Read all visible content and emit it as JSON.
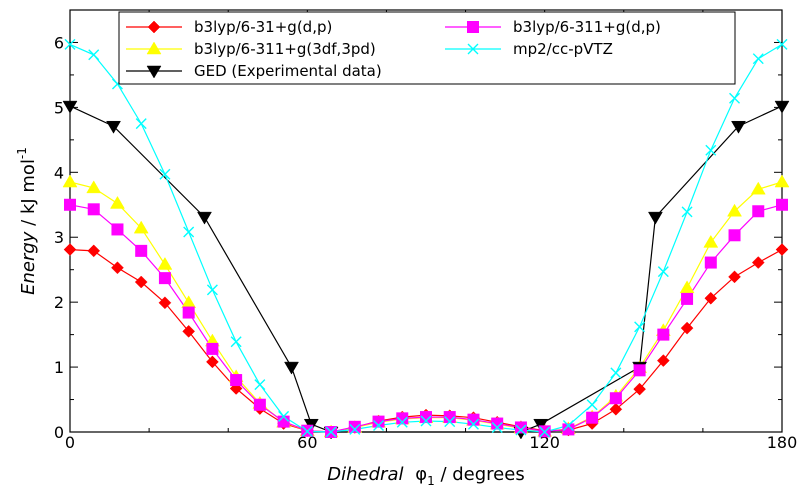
{
  "chart_data": {
    "type": "line",
    "title": "",
    "xlabel": {
      "prefix": "Dihedral",
      "symbol": "φ",
      "subscript": "1",
      "suffix": " / degrees"
    },
    "ylabel": {
      "prefix": "Energy",
      "suffix": " / kJ mol",
      "superscript": "-1"
    },
    "xlim": [
      0,
      180
    ],
    "ylim": [
      0,
      6.5
    ],
    "xticks": [
      0,
      60,
      120,
      180
    ],
    "yticks": [
      0,
      1,
      2,
      3,
      4,
      5,
      6
    ],
    "grid": false,
    "legend_position": "top",
    "series": [
      {
        "name": "b3lyp/6-31+g(d,p)",
        "color": "#ff0000",
        "marker": "diamond",
        "x": [
          0,
          6,
          12,
          18,
          24,
          30,
          36,
          42,
          48,
          54,
          60,
          66,
          72,
          78,
          84,
          90,
          96,
          102,
          108,
          114,
          120,
          126,
          132,
          138,
          144,
          150,
          156,
          162,
          168,
          174,
          180
        ],
        "y": [
          2.81,
          2.79,
          2.53,
          2.31,
          1.99,
          1.55,
          1.08,
          0.67,
          0.36,
          0.13,
          0.02,
          0.0,
          0.07,
          0.17,
          0.23,
          0.26,
          0.25,
          0.22,
          0.15,
          0.08,
          0.02,
          0.03,
          0.13,
          0.35,
          0.66,
          1.1,
          1.6,
          2.06,
          2.39,
          2.61,
          2.81
        ]
      },
      {
        "name": "b3lyp/6-311+g(3df,3pd)",
        "color": "#ffff00",
        "marker": "triangle-up",
        "x": [
          0,
          6,
          12,
          18,
          24,
          30,
          36,
          42,
          48,
          54,
          60,
          66,
          72,
          78,
          84,
          90,
          96,
          102,
          108,
          114,
          120,
          126,
          132,
          138,
          144,
          150,
          156,
          162,
          168,
          174,
          180
        ],
        "y": [
          3.85,
          3.76,
          3.52,
          3.14,
          2.58,
          1.99,
          1.4,
          0.85,
          0.44,
          0.15,
          0.02,
          0.0,
          0.07,
          0.15,
          0.2,
          0.22,
          0.22,
          0.18,
          0.12,
          0.06,
          0.01,
          0.05,
          0.23,
          0.55,
          0.99,
          1.56,
          2.22,
          2.92,
          3.4,
          3.74,
          3.85
        ]
      },
      {
        "name": "GED (Experimental data)",
        "color": "#000000",
        "marker": "triangle-down",
        "x": [
          0,
          11,
          34,
          56,
          61,
          66,
          114,
          119,
          144,
          148,
          169,
          180
        ],
        "y": [
          5.02,
          4.71,
          3.31,
          1.0,
          0.12,
          0.0,
          0.0,
          0.12,
          1.0,
          3.31,
          4.71,
          5.02
        ]
      },
      {
        "name": "b3lyp/6-311+g(d,p)",
        "color": "#ff00ff",
        "marker": "square",
        "x": [
          0,
          6,
          12,
          18,
          24,
          30,
          36,
          42,
          48,
          54,
          60,
          66,
          72,
          78,
          84,
          90,
          96,
          102,
          108,
          114,
          120,
          126,
          132,
          138,
          144,
          150,
          156,
          162,
          168,
          174,
          180
        ],
        "y": [
          3.5,
          3.43,
          3.12,
          2.79,
          2.37,
          1.84,
          1.28,
          0.8,
          0.42,
          0.16,
          0.02,
          0.0,
          0.08,
          0.16,
          0.21,
          0.23,
          0.23,
          0.19,
          0.13,
          0.07,
          0.01,
          0.04,
          0.22,
          0.52,
          0.95,
          1.5,
          2.05,
          2.61,
          3.03,
          3.4,
          3.5
        ]
      },
      {
        "name": "mp2/cc-pVTZ",
        "color": "#00ffff",
        "marker": "x",
        "x": [
          0,
          6,
          12,
          18,
          24,
          30,
          36,
          42,
          48,
          54,
          60,
          66,
          72,
          78,
          84,
          90,
          96,
          102,
          108,
          114,
          120,
          126,
          132,
          138,
          144,
          150,
          156,
          162,
          168,
          174,
          180
        ],
        "y": [
          5.97,
          5.81,
          5.36,
          4.75,
          3.97,
          3.08,
          2.19,
          1.39,
          0.73,
          0.24,
          0.01,
          0.0,
          0.04,
          0.1,
          0.15,
          0.17,
          0.16,
          0.12,
          0.07,
          0.03,
          0.0,
          0.1,
          0.42,
          0.91,
          1.62,
          2.47,
          3.39,
          4.34,
          5.14,
          5.75,
          5.97
        ]
      }
    ],
    "legend_order": [
      0,
      3,
      1,
      4,
      2
    ]
  }
}
